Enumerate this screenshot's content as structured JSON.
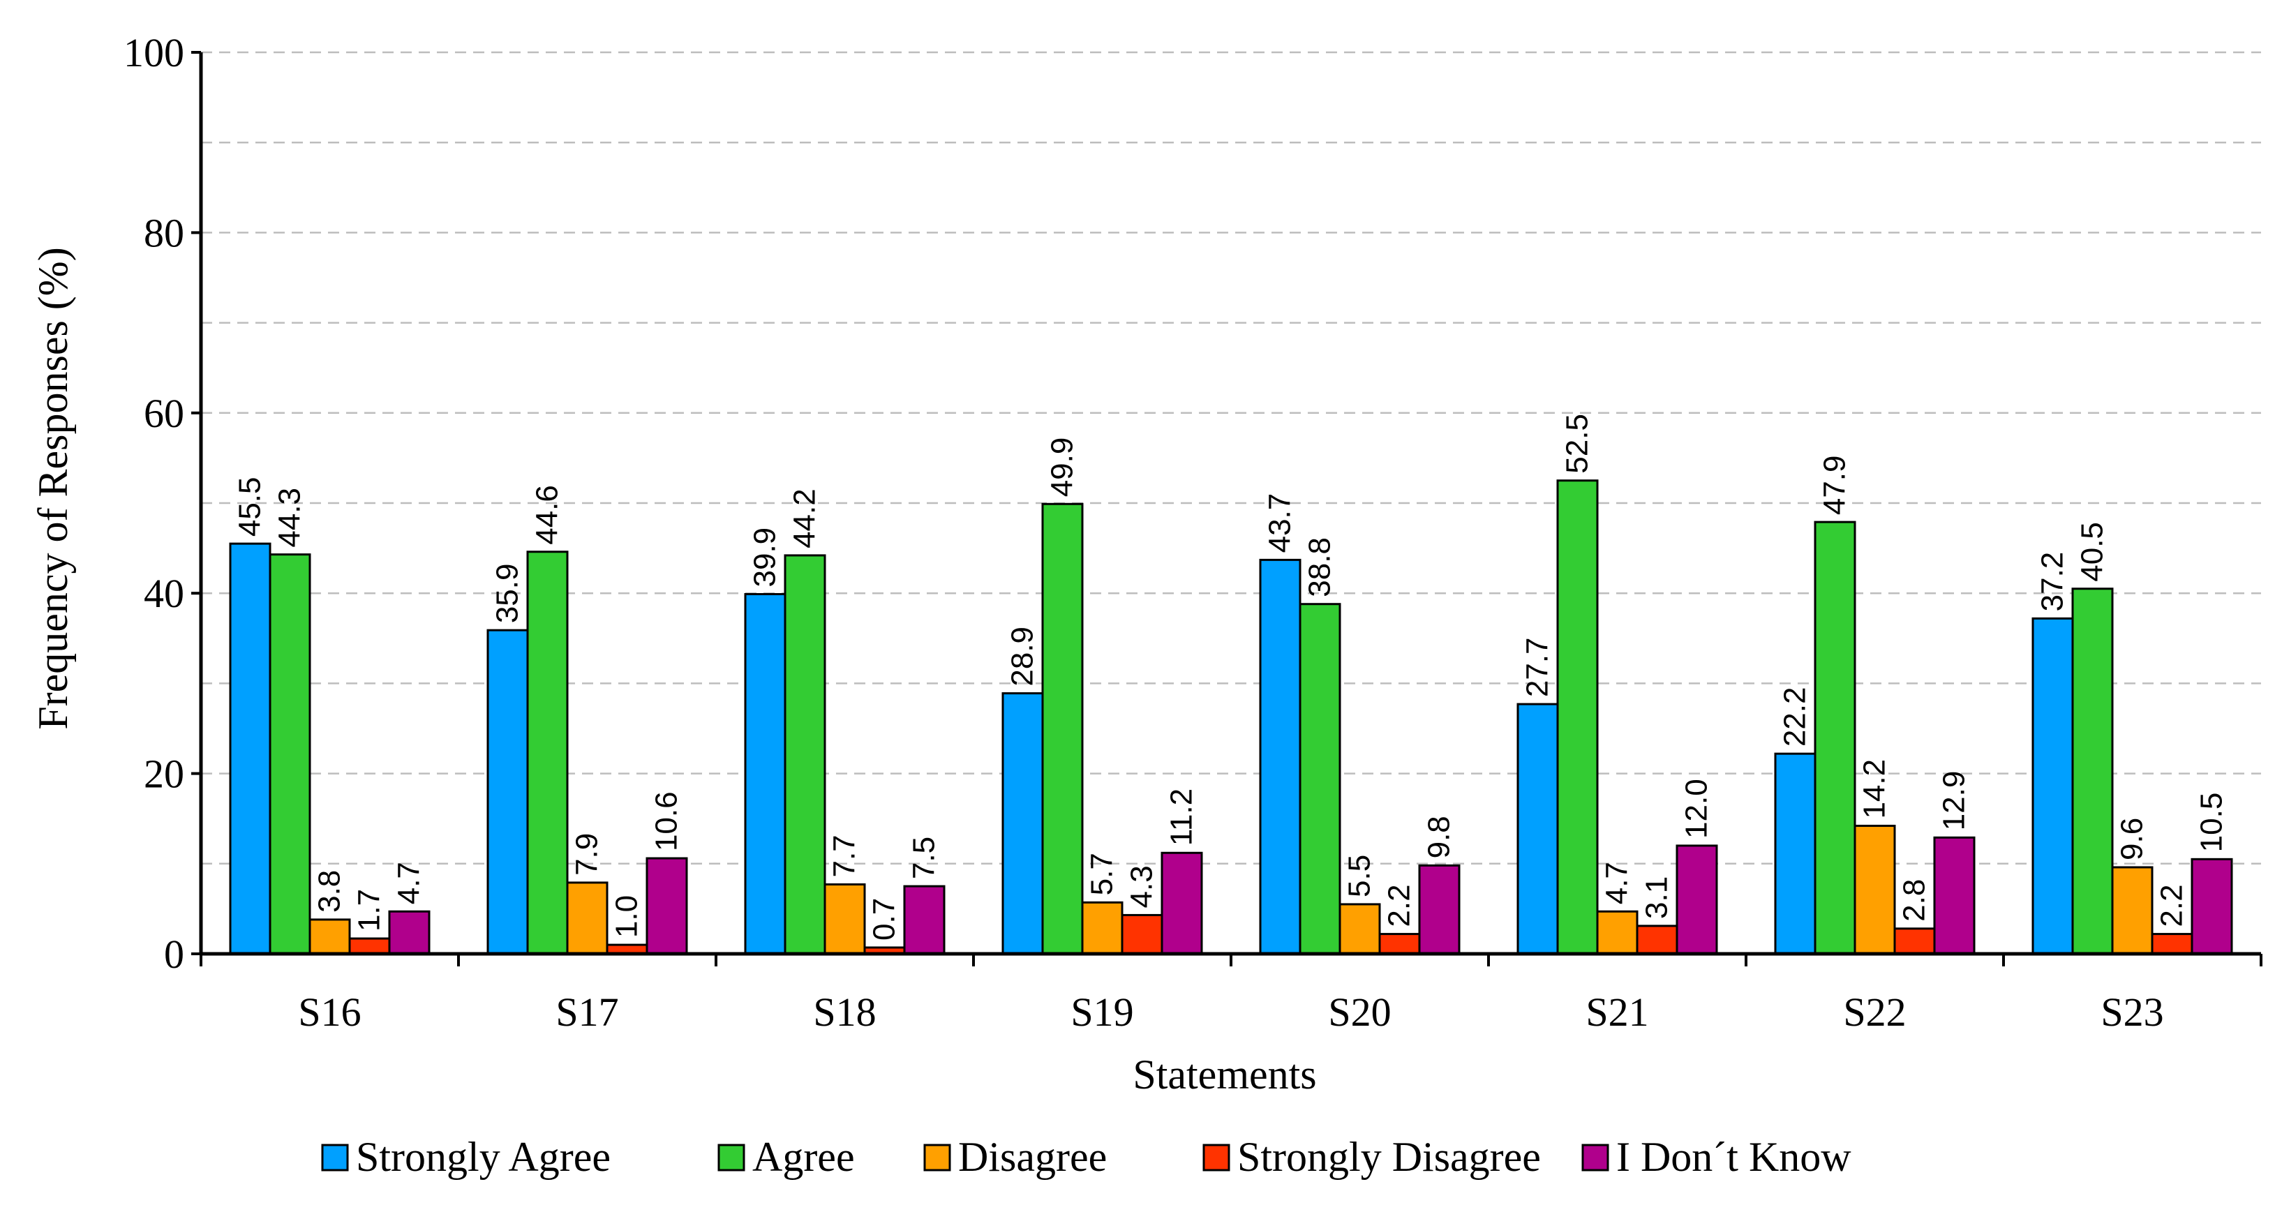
{
  "chart_data": {
    "type": "bar",
    "title": "",
    "xlabel": "Statements",
    "ylabel": "Frequency of Responses (%)",
    "ylim": [
      0,
      100
    ],
    "yticks": [
      0,
      20,
      40,
      60,
      80,
      100
    ],
    "ytick_labels": [
      "0",
      "20",
      "40",
      "60",
      "80",
      "100"
    ],
    "grid": "horizontal dashed every 10",
    "categories": [
      "S16",
      "S17",
      "S18",
      "S19",
      "S20",
      "S21",
      "S22",
      "S23"
    ],
    "series": [
      {
        "name": "Strongly Agree",
        "color": "#00a0ff",
        "values": [
          45.5,
          35.9,
          39.9,
          28.9,
          43.7,
          27.7,
          22.2,
          37.2
        ],
        "labels": [
          "45.5",
          "35.9",
          "39.9",
          "28.9",
          "43.7",
          "27.7",
          "22.2",
          "37.2"
        ]
      },
      {
        "name": "Agree",
        "color": "#33cc33",
        "values": [
          44.3,
          44.6,
          44.2,
          49.9,
          38.8,
          52.5,
          47.9,
          40.5
        ],
        "labels": [
          "44.3",
          "44.6",
          "44.2",
          "49.9",
          "38.8",
          "52.5",
          "47.9",
          "40.5"
        ]
      },
      {
        "name": "Disagree",
        "color": "#ffa000",
        "values": [
          3.8,
          7.9,
          7.7,
          5.7,
          5.5,
          4.7,
          14.2,
          9.6
        ],
        "labels": [
          "3.8",
          "7.9",
          "7.7",
          "5.7",
          "5.5",
          "4.7",
          "14.2",
          "9.6"
        ]
      },
      {
        "name": "Strongly Disagree",
        "color": "#ff3300",
        "values": [
          1.7,
          1.0,
          0.7,
          4.3,
          2.2,
          3.1,
          2.8,
          2.2
        ],
        "labels": [
          "1.7",
          "1.0",
          "0.7",
          "4.3",
          "2.2",
          "3.1",
          "2.8",
          "2.2"
        ]
      },
      {
        "name": "I Don´t Know",
        "color": "#b0008c",
        "values": [
          4.7,
          10.6,
          7.5,
          11.2,
          9.8,
          12.0,
          12.9,
          10.5
        ],
        "labels": [
          "4.7",
          "10.6",
          "7.5",
          "11.2",
          "9.8",
          "12.0",
          "12.9",
          "10.5"
        ]
      }
    ],
    "legend_position": "bottom-center"
  }
}
